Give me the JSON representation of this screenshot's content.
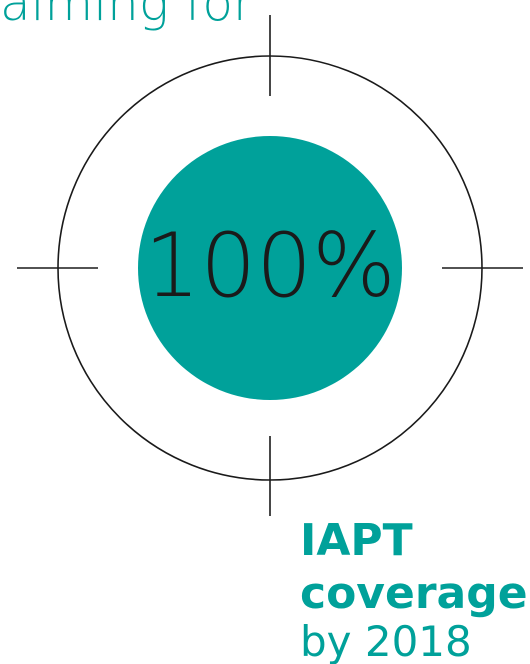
{
  "header": {
    "title": "aiming for"
  },
  "target": {
    "label": "100%"
  },
  "caption": {
    "lines": [
      "IAPT",
      "coverage",
      "by 2018"
    ]
  }
}
